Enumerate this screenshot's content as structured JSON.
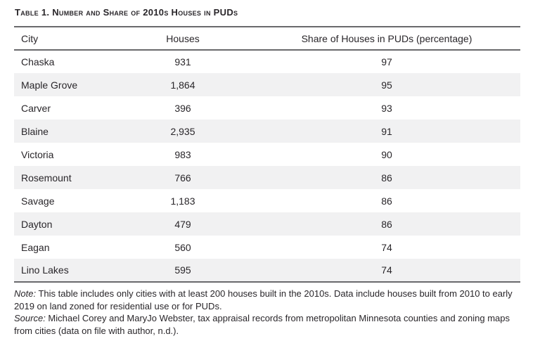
{
  "title": "Table 1. Number and Share of 2010s Houses in PUDs",
  "table": {
    "columns": [
      "City",
      "Houses",
      "Share of Houses in PUDs (percentage)"
    ],
    "rows": [
      {
        "city": "Chaska",
        "houses": "931",
        "share": "97"
      },
      {
        "city": "Maple Grove",
        "houses": "1,864",
        "share": "95"
      },
      {
        "city": "Carver",
        "houses": "396",
        "share": "93"
      },
      {
        "city": "Blaine",
        "houses": "2,935",
        "share": "91"
      },
      {
        "city": "Victoria",
        "houses": "983",
        "share": "90"
      },
      {
        "city": "Rosemount",
        "houses": "766",
        "share": "86"
      },
      {
        "city": "Savage",
        "houses": "1,183",
        "share": "86"
      },
      {
        "city": "Dayton",
        "houses": "479",
        "share": "86"
      },
      {
        "city": "Eagan",
        "houses": "560",
        "share": "74"
      },
      {
        "city": "Lino Lakes",
        "houses": "595",
        "share": "74"
      }
    ]
  },
  "notes": {
    "note_label": "Note:",
    "note_text": " This table includes only cities with at least 200 houses built in the 2010s. Data include houses built from 2010 to early 2019 on land zoned for residential use or for PUDs.",
    "source_label": "Source:",
    "source_text": " Michael Corey and MaryJo Webster, tax appraisal records from metropolitan Minnesota counties and zoning maps from cities (data on file with author, n.d.)."
  },
  "colors": {
    "text": "#29262a",
    "rule": "#69696c",
    "row_stripe": "#f1f1f2",
    "background": "#ffffff"
  }
}
